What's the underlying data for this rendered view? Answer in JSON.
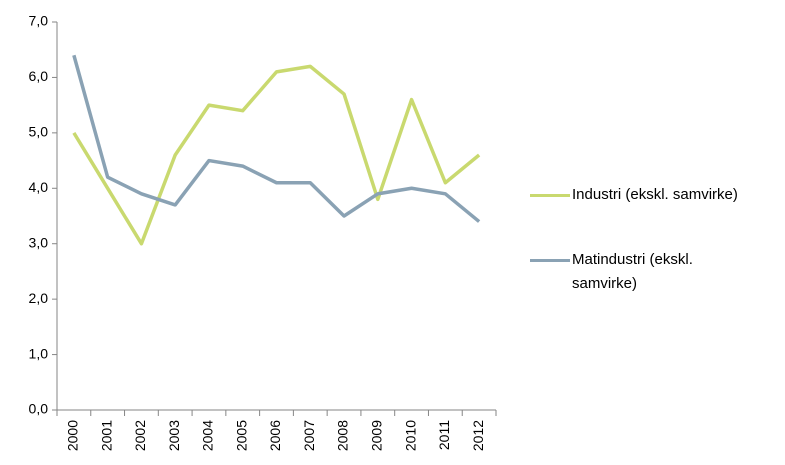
{
  "chart_data": {
    "type": "line",
    "categories": [
      "2000",
      "2001",
      "2002",
      "2003",
      "2004",
      "2005",
      "2006",
      "2007",
      "2008",
      "2009",
      "2010",
      "2011",
      "2012"
    ],
    "series": [
      {
        "name": "Industri (ekskl. samvirke)",
        "color": "#c9d96f",
        "values": [
          5.0,
          4.0,
          3.0,
          4.6,
          5.5,
          5.4,
          6.1,
          6.2,
          5.7,
          3.8,
          5.6,
          4.1,
          4.6
        ]
      },
      {
        "name": "Matindustri (ekskl. samvirke)",
        "color": "#8aa2b4",
        "values": [
          6.4,
          4.2,
          3.9,
          3.7,
          4.5,
          4.4,
          4.1,
          4.1,
          3.5,
          3.9,
          4.0,
          3.9,
          3.4
        ]
      }
    ],
    "ylim": [
      0,
      7
    ],
    "yticks": [
      {
        "value": 0,
        "label": "0,0"
      },
      {
        "value": 1,
        "label": "1,0"
      },
      {
        "value": 2,
        "label": "2,0"
      },
      {
        "value": 3,
        "label": "3,0"
      },
      {
        "value": 4,
        "label": "4,0"
      },
      {
        "value": 5,
        "label": "5,0"
      },
      {
        "value": 6,
        "label": "6,0"
      },
      {
        "value": 7,
        "label": "7,0"
      }
    ],
    "legend": "right"
  }
}
